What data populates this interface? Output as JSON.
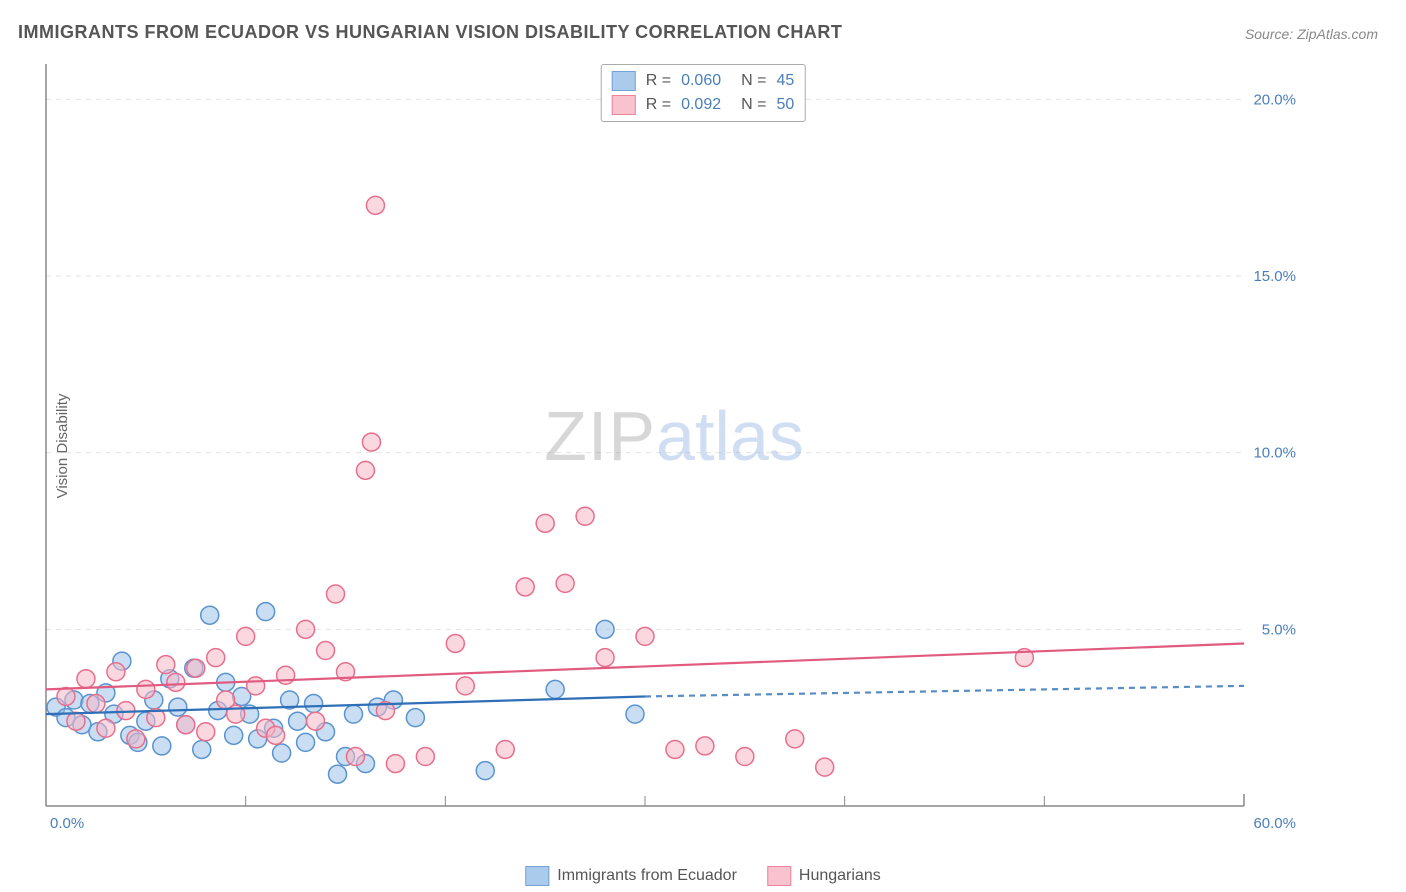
{
  "title": "IMMIGRANTS FROM ECUADOR VS HUNGARIAN VISION DISABILITY CORRELATION CHART",
  "source_label": "Source:",
  "source_value": "ZipAtlas.com",
  "ylabel": "Vision Disability",
  "watermark_a": "ZIP",
  "watermark_b": "atlas",
  "chart": {
    "type": "scatter",
    "xlim": [
      0,
      60
    ],
    "ylim": [
      0,
      21
    ],
    "y_ticks": [
      5,
      10,
      15,
      20
    ],
    "y_tick_labels": [
      "5.0%",
      "10.0%",
      "15.0%",
      "20.0%"
    ],
    "x_tick_labels": {
      "min": "0.0%",
      "max": "60.0%"
    },
    "x_tick_positions": [
      10,
      20,
      30,
      40,
      50
    ],
    "grid_color": "#e3e3e3",
    "axis_color": "#888888",
    "background": "#ffffff",
    "series": [
      {
        "name": "Immigrants from Ecuador",
        "fill": "#9cc3e8",
        "stroke": "#5a93cf",
        "fill_opacity": 0.55,
        "line_color": "#2e6fb7",
        "trend": {
          "x0": 0,
          "y0": 2.6,
          "x1": 30,
          "y1": 3.1,
          "x2": 60,
          "y2": 3.4,
          "dash_after": 30
        },
        "points": [
          [
            0.5,
            2.8
          ],
          [
            1,
            2.5
          ],
          [
            1.4,
            3.0
          ],
          [
            1.8,
            2.3
          ],
          [
            2.2,
            2.9
          ],
          [
            2.6,
            2.1
          ],
          [
            3,
            3.2
          ],
          [
            3.4,
            2.6
          ],
          [
            3.8,
            4.1
          ],
          [
            4.2,
            2.0
          ],
          [
            4.6,
            1.8
          ],
          [
            5,
            2.4
          ],
          [
            5.4,
            3.0
          ],
          [
            5.8,
            1.7
          ],
          [
            6.2,
            3.6
          ],
          [
            6.6,
            2.8
          ],
          [
            7,
            2.3
          ],
          [
            7.4,
            3.9
          ],
          [
            7.8,
            1.6
          ],
          [
            8.2,
            5.4
          ],
          [
            8.6,
            2.7
          ],
          [
            9,
            3.5
          ],
          [
            9.4,
            2.0
          ],
          [
            9.8,
            3.1
          ],
          [
            10.2,
            2.6
          ],
          [
            10.6,
            1.9
          ],
          [
            11,
            5.5
          ],
          [
            11.4,
            2.2
          ],
          [
            11.8,
            1.5
          ],
          [
            12.2,
            3.0
          ],
          [
            12.6,
            2.4
          ],
          [
            13,
            1.8
          ],
          [
            13.4,
            2.9
          ],
          [
            14,
            2.1
          ],
          [
            14.6,
            0.9
          ],
          [
            15,
            1.4
          ],
          [
            15.4,
            2.6
          ],
          [
            16,
            1.2
          ],
          [
            16.6,
            2.8
          ],
          [
            17.4,
            3.0
          ],
          [
            18.5,
            2.5
          ],
          [
            22,
            1.0
          ],
          [
            25.5,
            3.3
          ],
          [
            28,
            5.0
          ],
          [
            29.5,
            2.6
          ]
        ]
      },
      {
        "name": "Hungarians",
        "fill": "#f7b8c6",
        "stroke": "#e76f8d",
        "fill_opacity": 0.55,
        "line_color": "#e15a80",
        "trend": {
          "x0": 0,
          "y0": 3.3,
          "x1": 60,
          "y1": 4.6
        },
        "points": [
          [
            1,
            3.1
          ],
          [
            1.5,
            2.4
          ],
          [
            2,
            3.6
          ],
          [
            2.5,
            2.9
          ],
          [
            3,
            2.2
          ],
          [
            3.5,
            3.8
          ],
          [
            4,
            2.7
          ],
          [
            4.5,
            1.9
          ],
          [
            5,
            3.3
          ],
          [
            5.5,
            2.5
          ],
          [
            6,
            4.0
          ],
          [
            6.5,
            3.5
          ],
          [
            7,
            2.3
          ],
          [
            7.5,
            3.9
          ],
          [
            8,
            2.1
          ],
          [
            8.5,
            4.2
          ],
          [
            9,
            3.0
          ],
          [
            9.5,
            2.6
          ],
          [
            10,
            4.8
          ],
          [
            10.5,
            3.4
          ],
          [
            11,
            2.2
          ],
          [
            11.5,
            2.0
          ],
          [
            12,
            3.7
          ],
          [
            13,
            5.0
          ],
          [
            13.5,
            2.4
          ],
          [
            14,
            4.4
          ],
          [
            14.5,
            6.0
          ],
          [
            15,
            3.8
          ],
          [
            15.5,
            1.4
          ],
          [
            16,
            9.5
          ],
          [
            16.3,
            10.3
          ],
          [
            16.5,
            17.0
          ],
          [
            17,
            2.7
          ],
          [
            17.5,
            1.2
          ],
          [
            19,
            1.4
          ],
          [
            20.5,
            4.6
          ],
          [
            21,
            3.4
          ],
          [
            23,
            1.6
          ],
          [
            24,
            6.2
          ],
          [
            25,
            8.0
          ],
          [
            26,
            6.3
          ],
          [
            27,
            8.2
          ],
          [
            28,
            4.2
          ],
          [
            30,
            4.8
          ],
          [
            31.5,
            1.6
          ],
          [
            33,
            1.7
          ],
          [
            35,
            1.4
          ],
          [
            37.5,
            1.9
          ],
          [
            39,
            1.1
          ],
          [
            49,
            4.2
          ]
        ]
      }
    ],
    "marker_radius": 9,
    "stroke_width": 1.5,
    "trend_width": 2.2
  },
  "legend_top": {
    "rows": [
      {
        "swatch_fill": "#9cc3e8",
        "swatch_stroke": "#5a93cf",
        "r_label": "R =",
        "r": "0.060",
        "n_label": "N =",
        "n": "45"
      },
      {
        "swatch_fill": "#f7b8c6",
        "swatch_stroke": "#e76f8d",
        "r_label": "R =",
        "r": "0.092",
        "n_label": "N =",
        "n": "50"
      }
    ]
  },
  "legend_bottom": {
    "items": [
      {
        "swatch_fill": "#9cc3e8",
        "swatch_stroke": "#5a93cf",
        "label": "Immigrants from Ecuador"
      },
      {
        "swatch_fill": "#f7b8c6",
        "swatch_stroke": "#e76f8d",
        "label": "Hungarians"
      }
    ]
  },
  "colors": {
    "title": "#555555",
    "tick": "#4a7ebb",
    "ylabel": "#666666"
  }
}
